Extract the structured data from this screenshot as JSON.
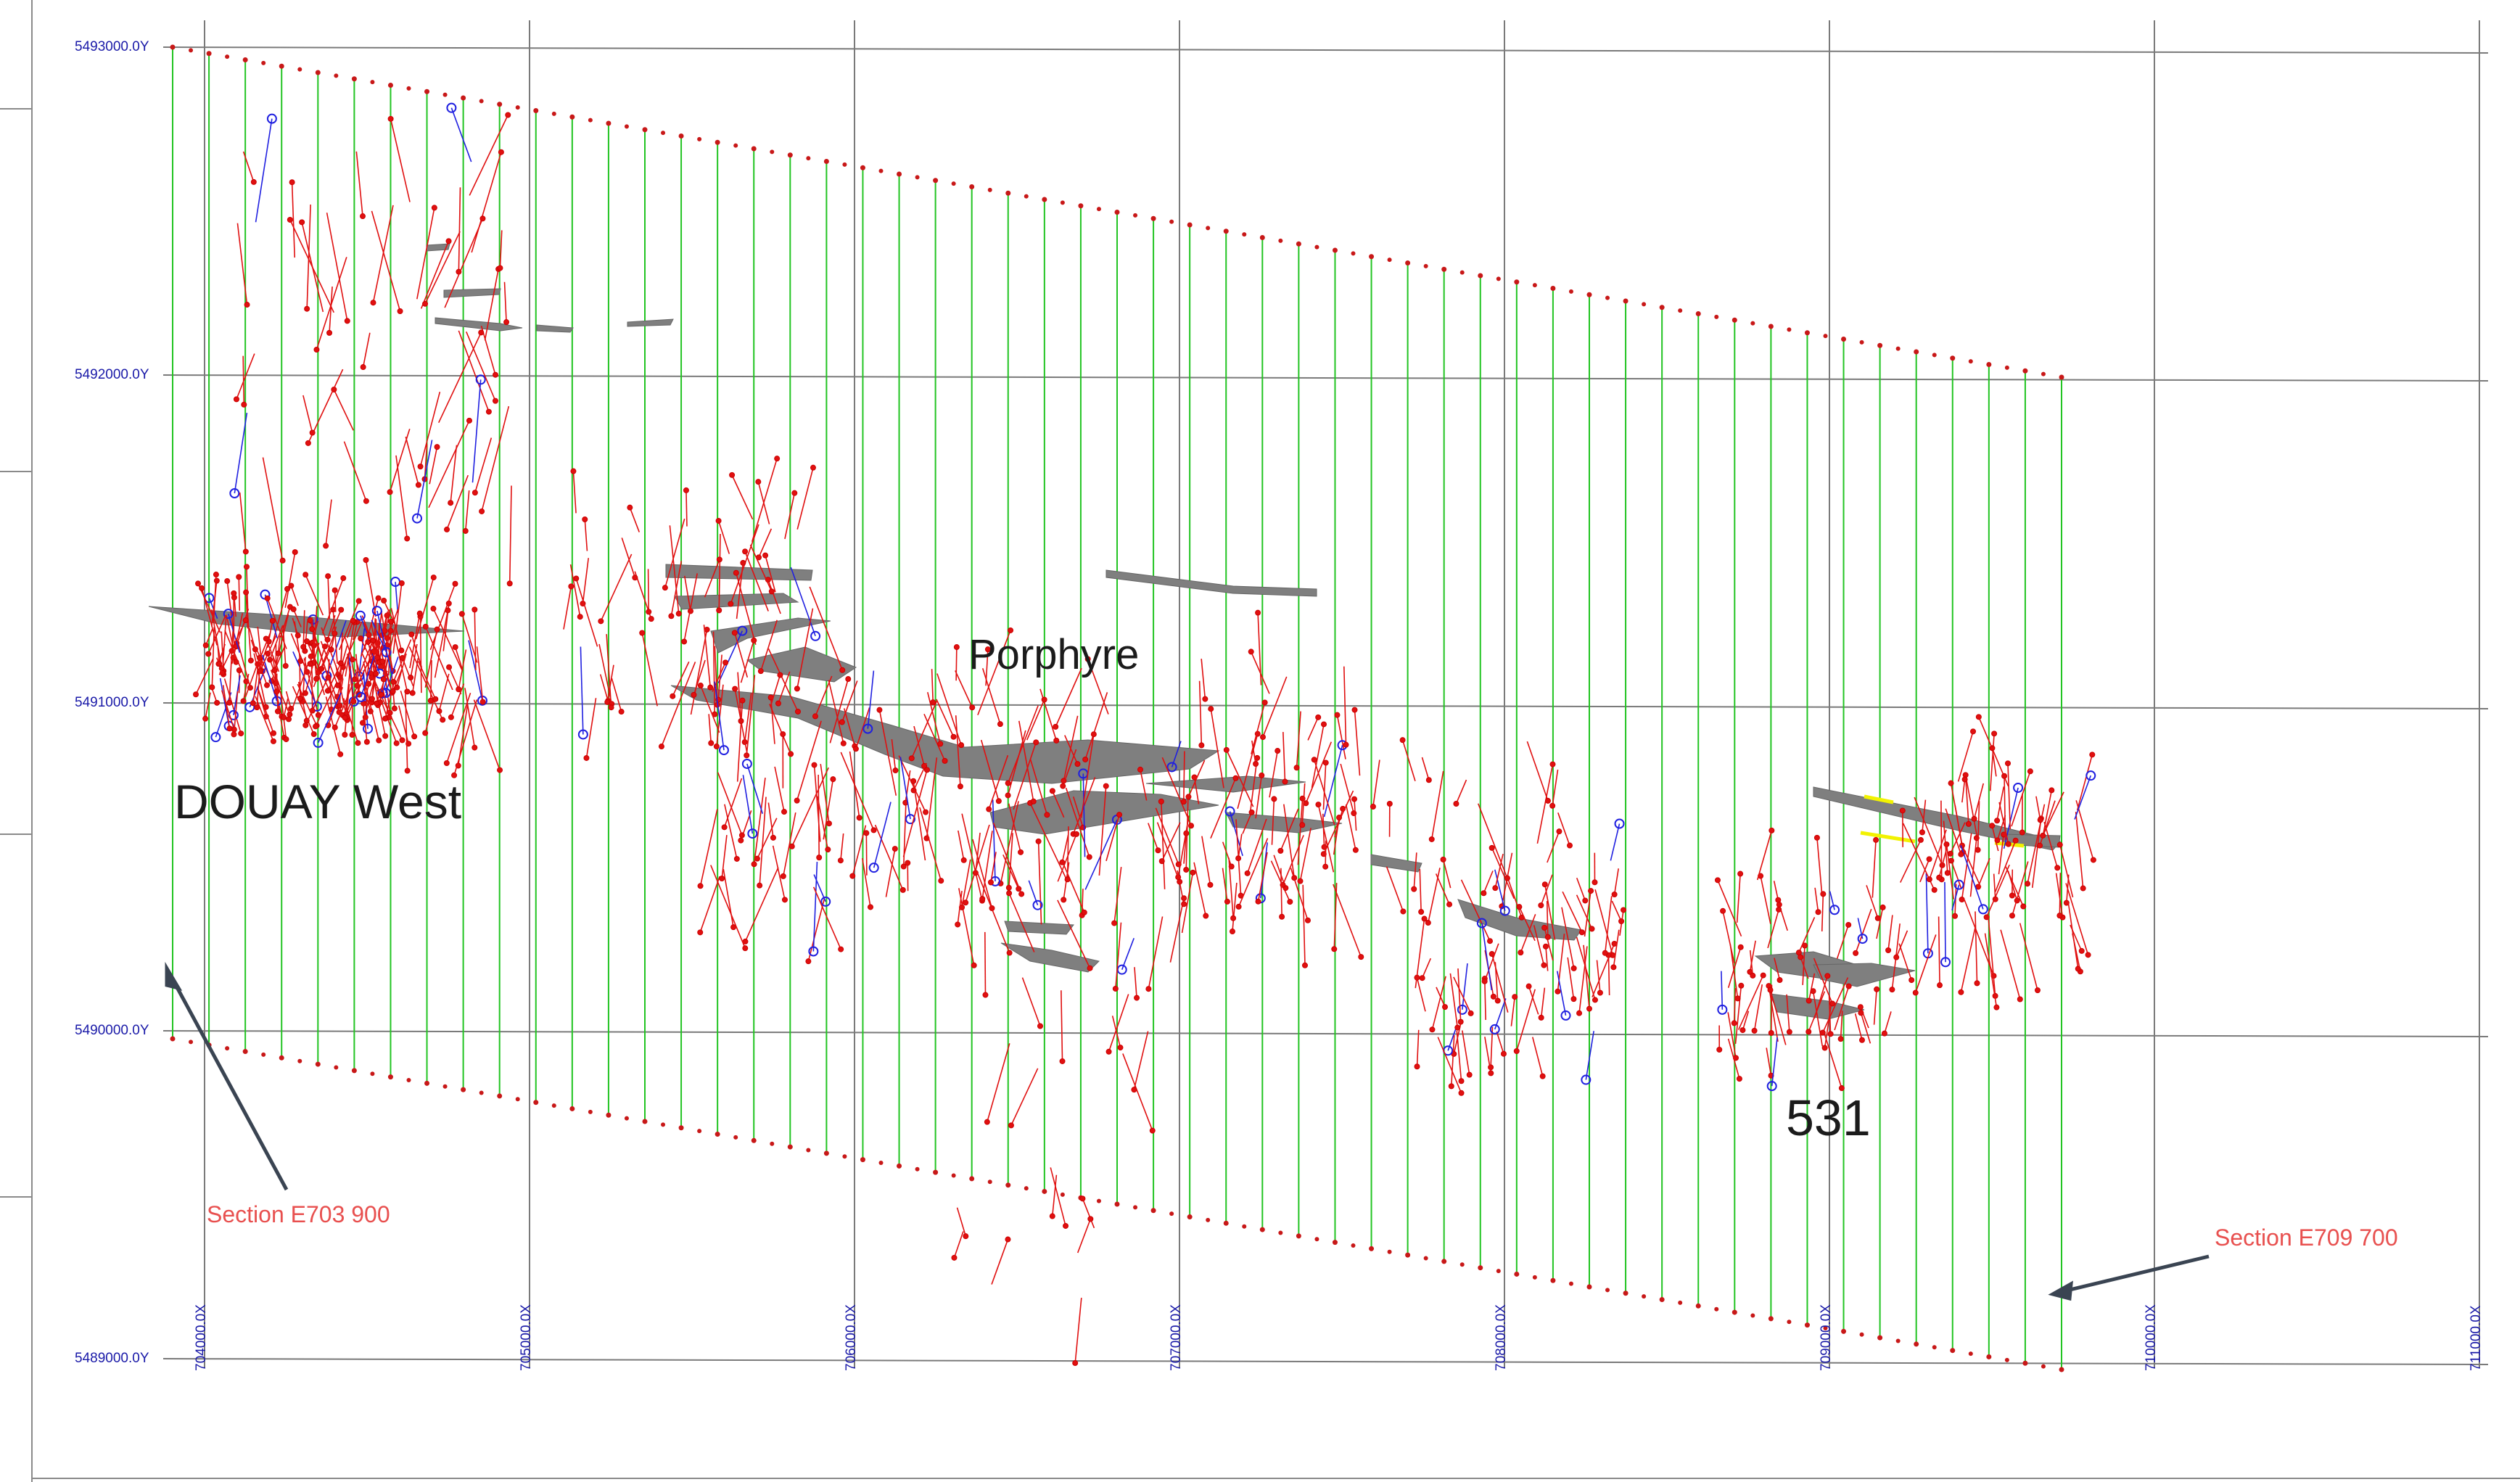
{
  "map": {
    "y_axis_labels": [
      "5493000.0Y",
      "5492000.0Y",
      "5491000.0Y",
      "5490000.0Y",
      "5489000.0Y"
    ],
    "x_axis_labels": [
      "704000.0X",
      "705000.0X",
      "706000.0X",
      "707000.0X",
      "708000.0X",
      "709000.0X",
      "710000.0X",
      "711000.0X"
    ],
    "area_labels": {
      "douay_west": "DOUAY West",
      "porphyre": "Porphyre",
      "zone_531": "531"
    },
    "section_labels": {
      "start": "Section E703 900",
      "end": "Section E709 700"
    },
    "colors": {
      "section_lines": "#22c422",
      "grid": "#7a7a7a",
      "drillhole_red": "#e01010",
      "drillhole_blue": "#2020e0",
      "ore_zones": "#7f7f7f",
      "axis_labels": "#1a1aa8",
      "section_text": "#e8504f",
      "highlight_yellow": "#f2f200"
    }
  }
}
